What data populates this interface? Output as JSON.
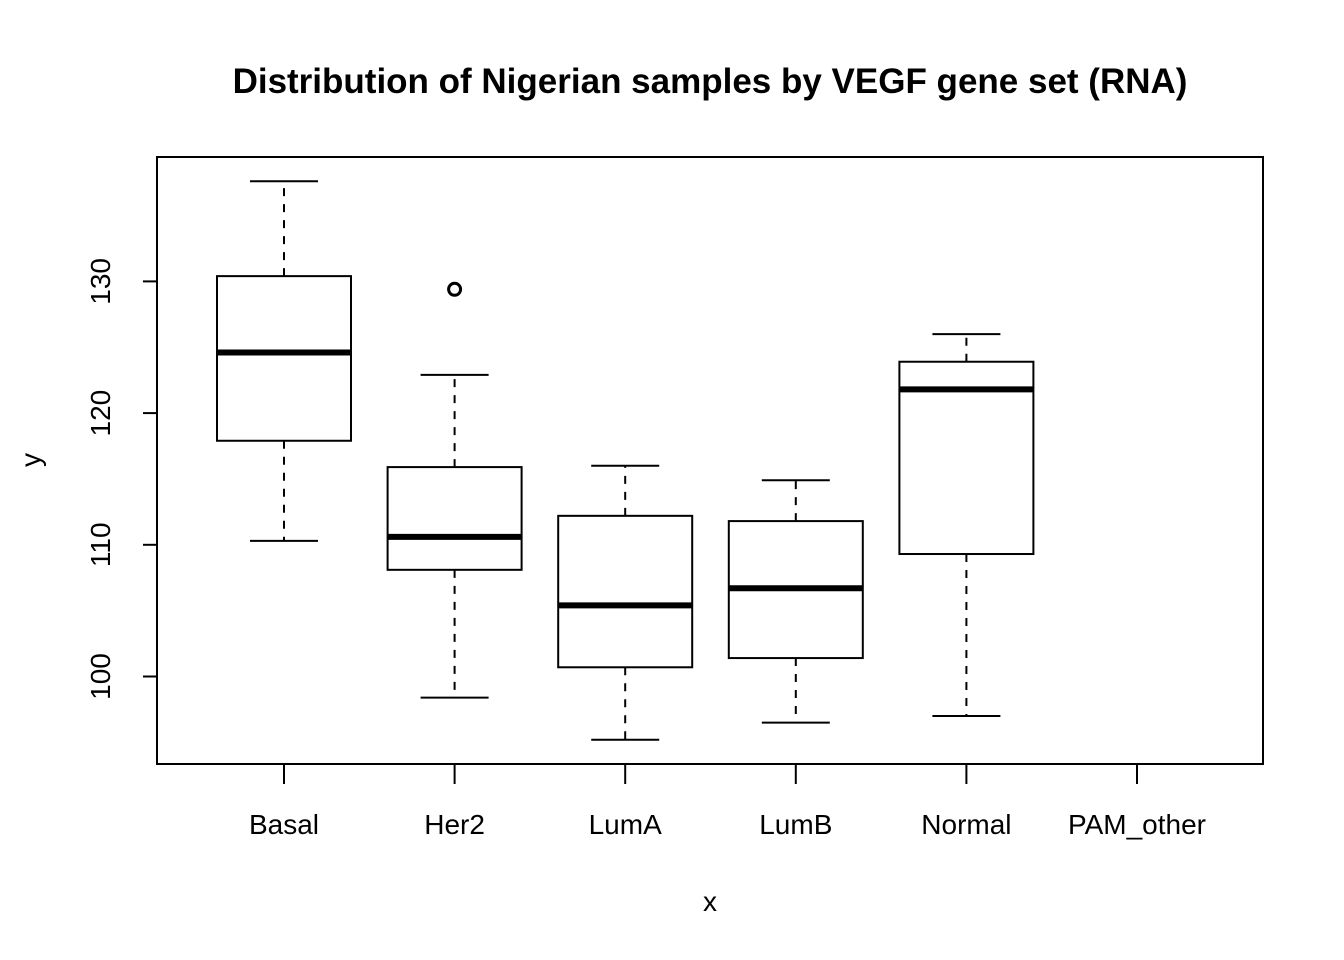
{
  "chart_data": {
    "type": "boxplot",
    "title": "Distribution of Nigerian samples by VEGF gene set (RNA)",
    "xlabel": "x",
    "ylabel": "y",
    "ylim": [
      94.5,
      139
    ],
    "yticks": [
      100,
      110,
      120,
      130
    ],
    "grid": false,
    "legend": "none",
    "categories": [
      "Basal",
      "Her2",
      "LumA",
      "LumB",
      "Normal",
      "PAM_other"
    ],
    "boxes": [
      {
        "name": "Basal",
        "whisker_low": 110.3,
        "q1": 117.9,
        "median": 124.6,
        "q3": 130.4,
        "whisker_high": 137.6,
        "outliers": []
      },
      {
        "name": "Her2",
        "whisker_low": 98.4,
        "q1": 108.1,
        "median": 110.6,
        "q3": 115.9,
        "whisker_high": 122.9,
        "outliers": [
          129.4
        ]
      },
      {
        "name": "LumA",
        "whisker_low": 95.2,
        "q1": 100.7,
        "median": 105.4,
        "q3": 112.2,
        "whisker_high": 116.0,
        "outliers": []
      },
      {
        "name": "LumB",
        "whisker_low": 96.5,
        "q1": 101.4,
        "median": 106.7,
        "q3": 111.8,
        "whisker_high": 114.9,
        "outliers": []
      },
      {
        "name": "Normal",
        "whisker_low": 97.0,
        "q1": 109.3,
        "median": 121.8,
        "q3": 123.9,
        "whisker_high": 126.0,
        "outliers": []
      },
      {
        "name": "PAM_other",
        "empty": true
      }
    ]
  }
}
